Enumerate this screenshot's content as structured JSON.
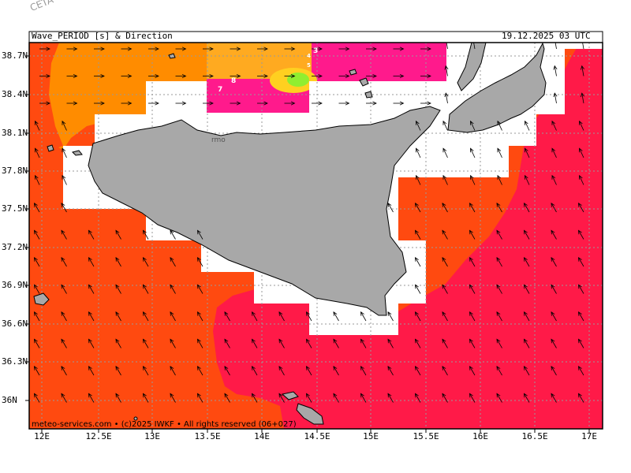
{
  "header": {
    "title": "Wave_PERIOD [s] & Direction",
    "timestamp": "19.12.2025 03 UTC"
  },
  "watermark": "CETA - ...",
  "credit": "meteo-services.com • (c)2025 IWKF • All rights reserved (06+027)",
  "axes": {
    "lat_labels": [
      "38.7N",
      "38.4N",
      "38.1N",
      "37.8N",
      "37.5N",
      "37.2N",
      "36.9N",
      "36.6N",
      "36.3N",
      "36N"
    ],
    "lon_labels": [
      "12E",
      "12.5E",
      "13E",
      "13.5E",
      "14E",
      "14.5E",
      "15E",
      "15.5E",
      "16E",
      "16.5E",
      "17E"
    ]
  },
  "map": {
    "contour_labels": [
      "7",
      "8",
      "5",
      "3",
      "4"
    ],
    "place_fragment": "rmo",
    "colors": {
      "land": "#a8a8a8",
      "no_data": "#ffffff",
      "period_7": "#ff4a10",
      "period_6": "#ff1a48",
      "period_8": "#ff8c00",
      "period_9": "#ffaa20",
      "period_low": "#ff1a8c",
      "period_min": "#90ee30"
    },
    "arrow_direction": "mostly from SE toward NW in south, W toward E in north"
  }
}
